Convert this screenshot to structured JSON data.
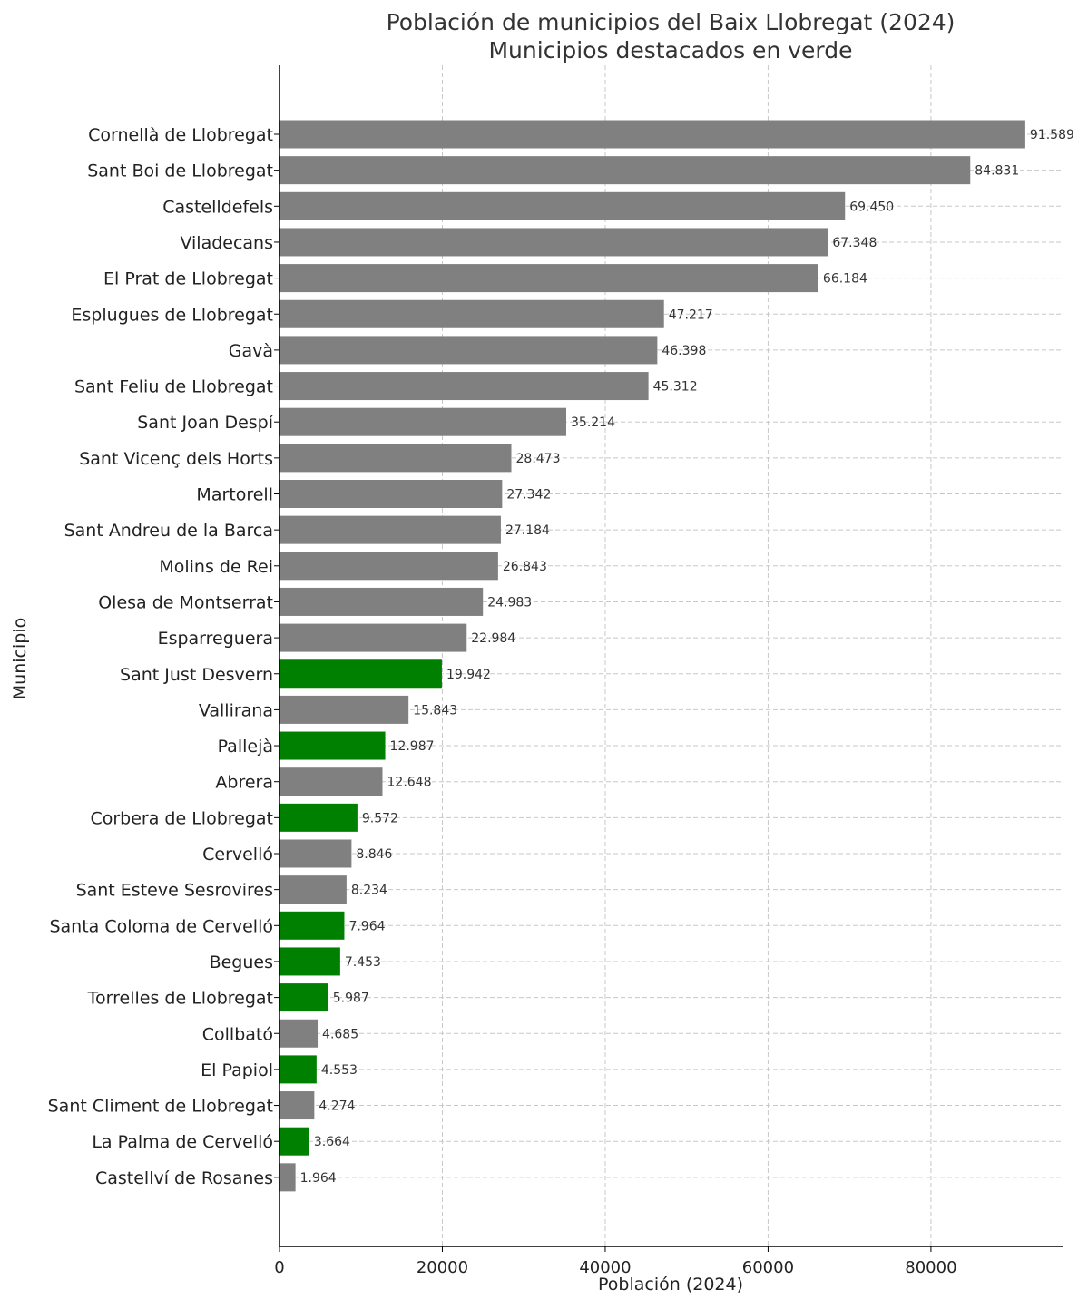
{
  "chart_data": {
    "type": "bar",
    "orientation": "horizontal",
    "title": "Población de municipios del Baix Llobregat (2024)",
    "subtitle": "Municipios destacados en verde",
    "xlabel": "Población (2024)",
    "ylabel": "Municipio",
    "xlim": [
      0,
      96169
    ],
    "xticks": [
      0,
      20000,
      40000,
      60000,
      80000
    ],
    "grid": true,
    "colors": {
      "default": "#808080",
      "highlight": "#008000"
    },
    "categories": [
      "Cornellà de Llobregat",
      "Sant Boi de Llobregat",
      "Castelldefels",
      "Viladecans",
      "El Prat de Llobregat",
      "Esplugues de Llobregat",
      "Gavà",
      "Sant Feliu de Llobregat",
      "Sant Joan Despí",
      "Sant Vicenç dels Horts",
      "Martorell",
      "Sant Andreu de la Barca",
      "Molins de Rei",
      "Olesa de Montserrat",
      "Esparreguera",
      "Sant Just Desvern",
      "Vallirana",
      "Pallejà",
      "Abrera",
      "Corbera de Llobregat",
      "Cervelló",
      "Sant Esteve Sesrovires",
      "Santa Coloma de Cervelló",
      "Begues",
      "Torrelles de Llobregat",
      "Collbató",
      "El Papiol",
      "Sant Climent de Llobregat",
      "La Palma de Cervelló",
      "Castellví de Rosanes"
    ],
    "values": [
      91589,
      84831,
      69450,
      67348,
      66184,
      47217,
      46398,
      45312,
      35214,
      28473,
      27342,
      27184,
      26843,
      24983,
      22984,
      19942,
      15843,
      12987,
      12648,
      9572,
      8846,
      8234,
      7964,
      7453,
      5987,
      4685,
      4553,
      4274,
      3664,
      1964
    ],
    "value_labels": [
      "91.589",
      "84.831",
      "69.450",
      "67.348",
      "66.184",
      "47.217",
      "46.398",
      "45.312",
      "35.214",
      "28.473",
      "27.342",
      "27.184",
      "26.843",
      "24.983",
      "22.984",
      "19.942",
      "15.843",
      "12.987",
      "12.648",
      "9.572",
      "8.846",
      "8.234",
      "7.964",
      "7.453",
      "5.987",
      "4.685",
      "4.553",
      "4.274",
      "3.664",
      "1.964"
    ],
    "highlighted": [
      false,
      false,
      false,
      false,
      false,
      false,
      false,
      false,
      false,
      false,
      false,
      false,
      false,
      false,
      false,
      true,
      false,
      true,
      false,
      true,
      false,
      false,
      true,
      true,
      true,
      false,
      true,
      false,
      true,
      false
    ]
  }
}
